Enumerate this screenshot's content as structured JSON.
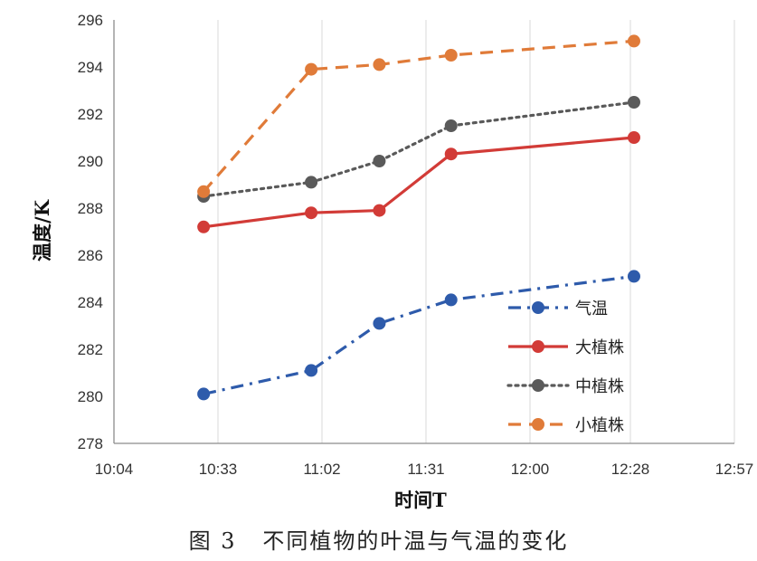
{
  "caption": "图 3   不同植物的叶温与气温的变化",
  "chart_data": {
    "type": "line",
    "xlabel": "时间T",
    "ylabel": "温度/K",
    "x_ticks": [
      "10:04",
      "10:33",
      "11:02",
      "11:31",
      "12:00",
      "12:28",
      "12:57"
    ],
    "xlim": [
      "10:04",
      "12:57"
    ],
    "ylim": [
      278,
      296
    ],
    "y_ticks": [
      278,
      280,
      282,
      284,
      286,
      288,
      290,
      292,
      294,
      296
    ],
    "grid": "vertical",
    "legend_position": "bottom-right",
    "x": [
      "10:29",
      "10:59",
      "11:18",
      "11:38",
      "12:29"
    ],
    "series": [
      {
        "name": "气温",
        "color": "#2e5bab",
        "dash": "dashdot",
        "values": [
          280.1,
          281.1,
          283.1,
          284.1,
          285.1
        ]
      },
      {
        "name": "大植株",
        "color": "#d23b37",
        "dash": "solid",
        "values": [
          287.2,
          287.8,
          287.9,
          290.3,
          291.0
        ]
      },
      {
        "name": "中植株",
        "color": "#5a5a5a",
        "dash": "dotted",
        "values": [
          288.5,
          289.1,
          290.0,
          291.5,
          292.5
        ]
      },
      {
        "name": "小植株",
        "color": "#e07b39",
        "dash": "dashed",
        "values": [
          288.7,
          293.9,
          294.1,
          294.5,
          295.1
        ]
      }
    ]
  }
}
